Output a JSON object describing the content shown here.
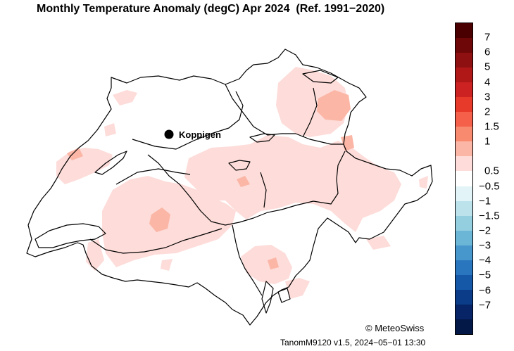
{
  "title": "Monthly Temperature Anomaly (degC) Apr 2024  (Ref. 1991−2020)",
  "credit": "© MeteoSwiss",
  "version": "TanomM9120 v1.5, 2024−05−01 13:30",
  "station": {
    "name": "Koppigen"
  },
  "legend": {
    "colors": [
      "#4a0000",
      "#6e0808",
      "#8e1010",
      "#b01818",
      "#cc2222",
      "#e83a2a",
      "#f4604a",
      "#f88a70",
      "#fbb6a6",
      "#fddcd9",
      "#ffffff",
      "#e3f4f8",
      "#bce2ec",
      "#94cfe0",
      "#6bb6d6",
      "#4796cc",
      "#2a76be",
      "#1558a8",
      "#0a3c88",
      "#062466",
      "#041848"
    ],
    "labels": [
      {
        "text": "7",
        "boundary": 1
      },
      {
        "text": "6",
        "boundary": 2
      },
      {
        "text": "5",
        "boundary": 3
      },
      {
        "text": "4",
        "boundary": 4
      },
      {
        "text": "3",
        "boundary": 5
      },
      {
        "text": "2",
        "boundary": 6
      },
      {
        "text": "1.5",
        "boundary": 7
      },
      {
        "text": "1",
        "boundary": 8
      },
      {
        "text": "0.5",
        "boundary": 10
      },
      {
        "text": "−0.5",
        "boundary": 11
      },
      {
        "text": "−1",
        "boundary": 12
      },
      {
        "text": "−1.5",
        "boundary": 13
      },
      {
        "text": "−2",
        "boundary": 14
      },
      {
        "text": "−3",
        "boundary": 15
      },
      {
        "text": "−4",
        "boundary": 16
      },
      {
        "text": "−5",
        "boundary": 17
      },
      {
        "text": "−6",
        "boundary": 18
      },
      {
        "text": "−7",
        "boundary": 19
      }
    ]
  }
}
